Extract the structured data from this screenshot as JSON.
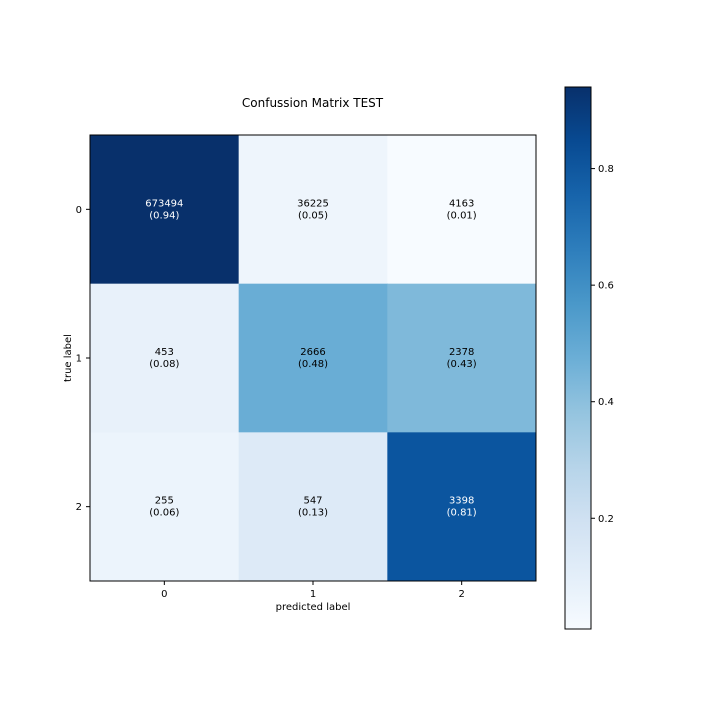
{
  "chart_data": {
    "type": "heatmap",
    "title": "Confussion Matrix TEST",
    "xlabel": "predicted label",
    "ylabel": "true label",
    "x_categories": [
      "0",
      "1",
      "2"
    ],
    "y_categories": [
      "0",
      "1",
      "2"
    ],
    "counts": [
      [
        673494,
        36225,
        4163
      ],
      [
        453,
        2666,
        2378
      ],
      [
        255,
        547,
        3398
      ]
    ],
    "normalized": [
      [
        0.94,
        0.05,
        0.01
      ],
      [
        0.08,
        0.48,
        0.43
      ],
      [
        0.06,
        0.13,
        0.81
      ]
    ],
    "cell_labels": [
      [
        [
          "673494",
          "(0.94)"
        ],
        [
          "36225",
          "(0.05)"
        ],
        [
          "4163",
          "(0.01)"
        ]
      ],
      [
        [
          "453",
          "(0.08)"
        ],
        [
          "2666",
          "(0.48)"
        ],
        [
          "2378",
          "(0.43)"
        ]
      ],
      [
        [
          "255",
          "(0.06)"
        ],
        [
          "547",
          "(0.13)"
        ],
        [
          "3398",
          "(0.81)"
        ]
      ]
    ],
    "colormap": "Blues",
    "colorbar": {
      "range": [
        0.01,
        0.94
      ],
      "ticks": [
        0.2,
        0.4,
        0.6,
        0.8
      ],
      "tick_labels": [
        "0.2",
        "0.4",
        "0.6",
        "0.8"
      ]
    },
    "text_color_light": "#ffffff",
    "text_color_dark": "#000000",
    "grid": false
  }
}
